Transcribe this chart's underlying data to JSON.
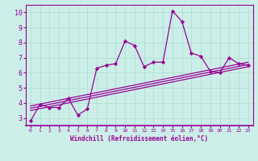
{
  "xlabel": "Windchill (Refroidissement éolien,°C)",
  "xlim": [
    -0.5,
    23.5
  ],
  "ylim": [
    2.5,
    10.5
  ],
  "yticks": [
    3,
    4,
    5,
    6,
    7,
    8,
    9,
    10
  ],
  "xticks": [
    0,
    1,
    2,
    3,
    4,
    5,
    6,
    7,
    8,
    9,
    10,
    11,
    12,
    13,
    14,
    15,
    16,
    17,
    18,
    19,
    20,
    21,
    22,
    23
  ],
  "bg_color": "#cceee8",
  "line_color": "#990099",
  "grid_color": "#aaddcc",
  "main_line_x": [
    0,
    1,
    2,
    3,
    4,
    5,
    6,
    7,
    8,
    9,
    10,
    11,
    12,
    13,
    14,
    15,
    16,
    17,
    18,
    19,
    20,
    21,
    22,
    23
  ],
  "main_line_y": [
    2.8,
    3.9,
    3.7,
    3.7,
    4.3,
    3.2,
    3.6,
    6.3,
    6.5,
    6.6,
    8.1,
    7.8,
    6.4,
    6.7,
    6.7,
    10.1,
    9.4,
    7.3,
    7.1,
    6.1,
    6.0,
    7.0,
    6.6,
    6.5
  ],
  "reg_line1_x": [
    0,
    23
  ],
  "reg_line1_y": [
    3.5,
    6.4
  ],
  "reg_line2_x": [
    0,
    23
  ],
  "reg_line2_y": [
    3.65,
    6.55
  ],
  "reg_line3_x": [
    0,
    23
  ],
  "reg_line3_y": [
    3.8,
    6.7
  ]
}
